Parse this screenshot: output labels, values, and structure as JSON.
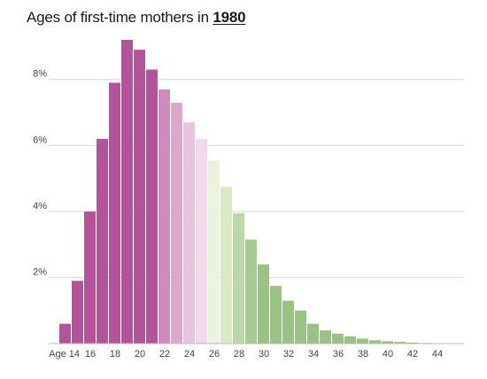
{
  "title_prefix": "Ages of first-time mothers in",
  "title_year": "1980",
  "chart_data": {
    "type": "bar",
    "title": "Ages of first-time mothers in 1980",
    "categories": [
      14,
      15,
      16,
      17,
      18,
      19,
      20,
      21,
      22,
      23,
      24,
      25,
      26,
      27,
      28,
      29,
      30,
      31,
      32,
      33,
      34,
      35,
      36,
      37,
      38,
      39,
      40,
      41,
      42,
      43,
      44
    ],
    "values": [
      0.6,
      1.9,
      4.0,
      6.2,
      7.9,
      9.2,
      8.9,
      8.3,
      7.7,
      7.3,
      6.7,
      6.2,
      5.55,
      4.75,
      3.95,
      3.15,
      2.4,
      1.75,
      1.3,
      1.0,
      0.6,
      0.4,
      0.3,
      0.22,
      0.15,
      0.1,
      0.07,
      0.05,
      0.03,
      0.02,
      0.01
    ],
    "colors": [
      "#b5529b",
      "#b5529b",
      "#b5529b",
      "#b5529b",
      "#b5529b",
      "#b5529b",
      "#b5529b",
      "#b5529b",
      "#cf8bba",
      "#dba8cd",
      "#eac3df",
      "#f4d9eb",
      "#ebf3dc",
      "#d9eac5",
      "#bcd9a5",
      "#a6cc8f",
      "#99c283",
      "#99c283",
      "#99c283",
      "#99c283",
      "#99c283",
      "#99c283",
      "#99c283",
      "#99c283",
      "#99c283",
      "#99c283",
      "#99c283",
      "#99c283",
      "#99c283",
      "#99c283",
      "#99c283"
    ],
    "y_ticks": [
      "2%",
      "4%",
      "6%",
      "8%"
    ],
    "y_tick_values": [
      2,
      4,
      6,
      8
    ],
    "x_ticks": [
      "Age 14",
      "16",
      "18",
      "20",
      "22",
      "24",
      "26",
      "28",
      "30",
      "32",
      "34",
      "36",
      "38",
      "40",
      "42",
      "44"
    ],
    "x_tick_values": [
      14,
      16,
      18,
      20,
      22,
      24,
      26,
      28,
      30,
      32,
      34,
      36,
      38,
      40,
      42,
      44
    ],
    "ylim": [
      0,
      9.2
    ],
    "grid": true
  }
}
